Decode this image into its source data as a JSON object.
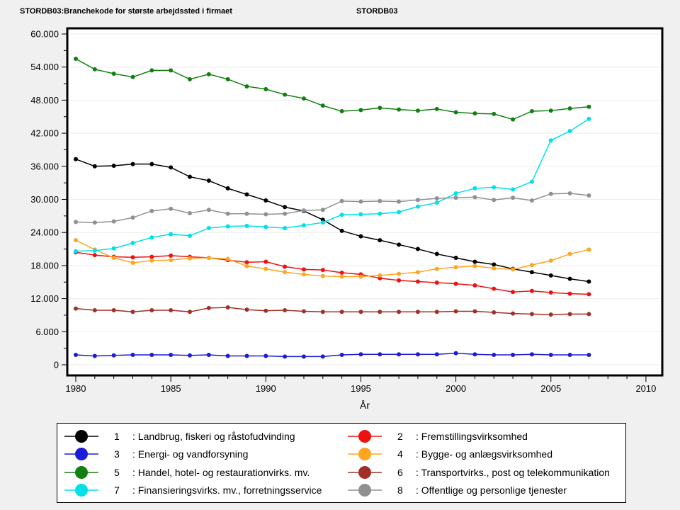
{
  "header": {
    "left_title": "STORDB03:Branchekode for største arbejdssted i firmaet",
    "right_title": "STORDB03"
  },
  "chart_data": {
    "type": "line",
    "title": "",
    "xlabel": "År",
    "ylabel": "",
    "grid": "horizontal-only",
    "legend_position": "bottom-box-2-columns",
    "xlim": [
      1979.5,
      2011
    ],
    "ylim": [
      0,
      60000
    ],
    "x_major_ticks": [
      1980,
      1985,
      1990,
      1995,
      2000,
      2005,
      2010
    ],
    "x_minor_tick_step": 1,
    "y_major_tick_step": 6000,
    "y_minor_tick_step": 3000,
    "y_tick_labels": [
      "0",
      "6.000",
      "12.000",
      "18.000",
      "24.000",
      "30.000",
      "36.000",
      "42.000",
      "48.000",
      "54.000",
      "60.000"
    ],
    "years": [
      1980,
      1981,
      1982,
      1983,
      1984,
      1985,
      1986,
      1987,
      1988,
      1989,
      1990,
      1991,
      1992,
      1993,
      1994,
      1995,
      1996,
      1997,
      1998,
      1999,
      2000,
      2001,
      2002,
      2003,
      2004,
      2005,
      2006,
      2007
    ],
    "series": [
      {
        "num": "1",
        "label": ": Landbrug, fiskeri og råstofudvinding",
        "name": "Landbrug, fiskeri og råstofudvinding",
        "color": "#000000",
        "values": [
          37300,
          36000,
          36100,
          36400,
          36400,
          35800,
          34100,
          33400,
          32000,
          30900,
          29800,
          28600,
          27900,
          26300,
          24300,
          23300,
          22600,
          21800,
          21000,
          20100,
          19400,
          18700,
          18200,
          17400,
          16800,
          16200,
          15600,
          15100
        ]
      },
      {
        "num": "2",
        "label": ": Fremstillingsvirksomhed",
        "name": "Fremstillingsvirksomhed",
        "color": "#ee1111",
        "values": [
          20400,
          19900,
          19600,
          19500,
          19600,
          19800,
          19600,
          19400,
          19000,
          18600,
          18700,
          17800,
          17300,
          17200,
          16700,
          16400,
          15700,
          15300,
          15100,
          14900,
          14700,
          14400,
          13800,
          13200,
          13400,
          13100,
          12900,
          12800
        ]
      },
      {
        "num": "3",
        "label": ": Energi- og vandforsyning",
        "name": "Energi- og vandforsyning",
        "color": "#1c1cd6",
        "values": [
          1800,
          1600,
          1700,
          1800,
          1800,
          1800,
          1700,
          1800,
          1600,
          1600,
          1600,
          1500,
          1500,
          1500,
          1800,
          1900,
          1900,
          1900,
          1900,
          1900,
          2100,
          1900,
          1800,
          1800,
          1900,
          1800,
          1800,
          1800
        ]
      },
      {
        "num": "4",
        "label": ": Bygge- og anlægsvirksomhed",
        "name": "Bygge- og anlægsvirksomhed",
        "color": "#ffa520",
        "values": [
          22600,
          20900,
          19400,
          18500,
          18900,
          19000,
          19300,
          19400,
          19200,
          17900,
          17400,
          16800,
          16400,
          16100,
          16000,
          16000,
          16200,
          16500,
          16800,
          17400,
          17700,
          17900,
          17500,
          17300,
          18100,
          18900,
          20100,
          20900
        ]
      },
      {
        "num": "5",
        "label": ": Handel, hotel- og restaurationvirks. mv.",
        "name": "Handel, hotel- og restaurationvirks. mv.",
        "color": "#118011",
        "values": [
          55500,
          53600,
          52800,
          52200,
          53400,
          53400,
          51800,
          52700,
          51800,
          50500,
          50000,
          49000,
          48300,
          47000,
          46000,
          46200,
          46600,
          46300,
          46100,
          46400,
          45800,
          45600,
          45500,
          44500,
          46000,
          46100,
          46500,
          46800
        ]
      },
      {
        "num": "6",
        "label": ": Transportvirks., post og telekommunikation",
        "name": "Transportvirks., post og telekommunikation",
        "color": "#a03028",
        "values": [
          10200,
          9900,
          9900,
          9600,
          9900,
          9900,
          9600,
          10300,
          10400,
          10000,
          9800,
          9900,
          9700,
          9600,
          9600,
          9600,
          9600,
          9600,
          9600,
          9600,
          9700,
          9700,
          9500,
          9300,
          9200,
          9100,
          9200,
          9200
        ]
      },
      {
        "num": "7",
        "label": ": Finansieringsvirks. mv., forretningsservice",
        "name": "Finansieringsvirks. mv., forretningsservice",
        "color": "#00e0e8",
        "values": [
          20600,
          20700,
          21100,
          22100,
          23100,
          23700,
          23400,
          24800,
          25100,
          25200,
          25000,
          24800,
          25300,
          25800,
          27200,
          27300,
          27400,
          27700,
          28700,
          29400,
          31100,
          32000,
          32200,
          31800,
          33200,
          40700,
          42400,
          44600
        ]
      },
      {
        "num": "8",
        "label": ": Offentlige og personlige tjenester",
        "name": "Offentlige og personlige tjenester",
        "color": "#909090",
        "values": [
          25900,
          25800,
          26000,
          26700,
          27900,
          28300,
          27500,
          28100,
          27400,
          27400,
          27300,
          27400,
          28000,
          28100,
          29700,
          29600,
          29700,
          29600,
          29900,
          30200,
          30300,
          30400,
          29900,
          30300,
          29800,
          31000,
          31100,
          30700
        ]
      }
    ],
    "legend_column_order": [
      [
        0,
        2,
        4,
        6
      ],
      [
        1,
        3,
        5,
        7
      ]
    ],
    "colors": {
      "plot_background": "#ffffff",
      "page_background": "#f0f0f0",
      "gridline": "#ececec",
      "frame": "#000000"
    }
  }
}
